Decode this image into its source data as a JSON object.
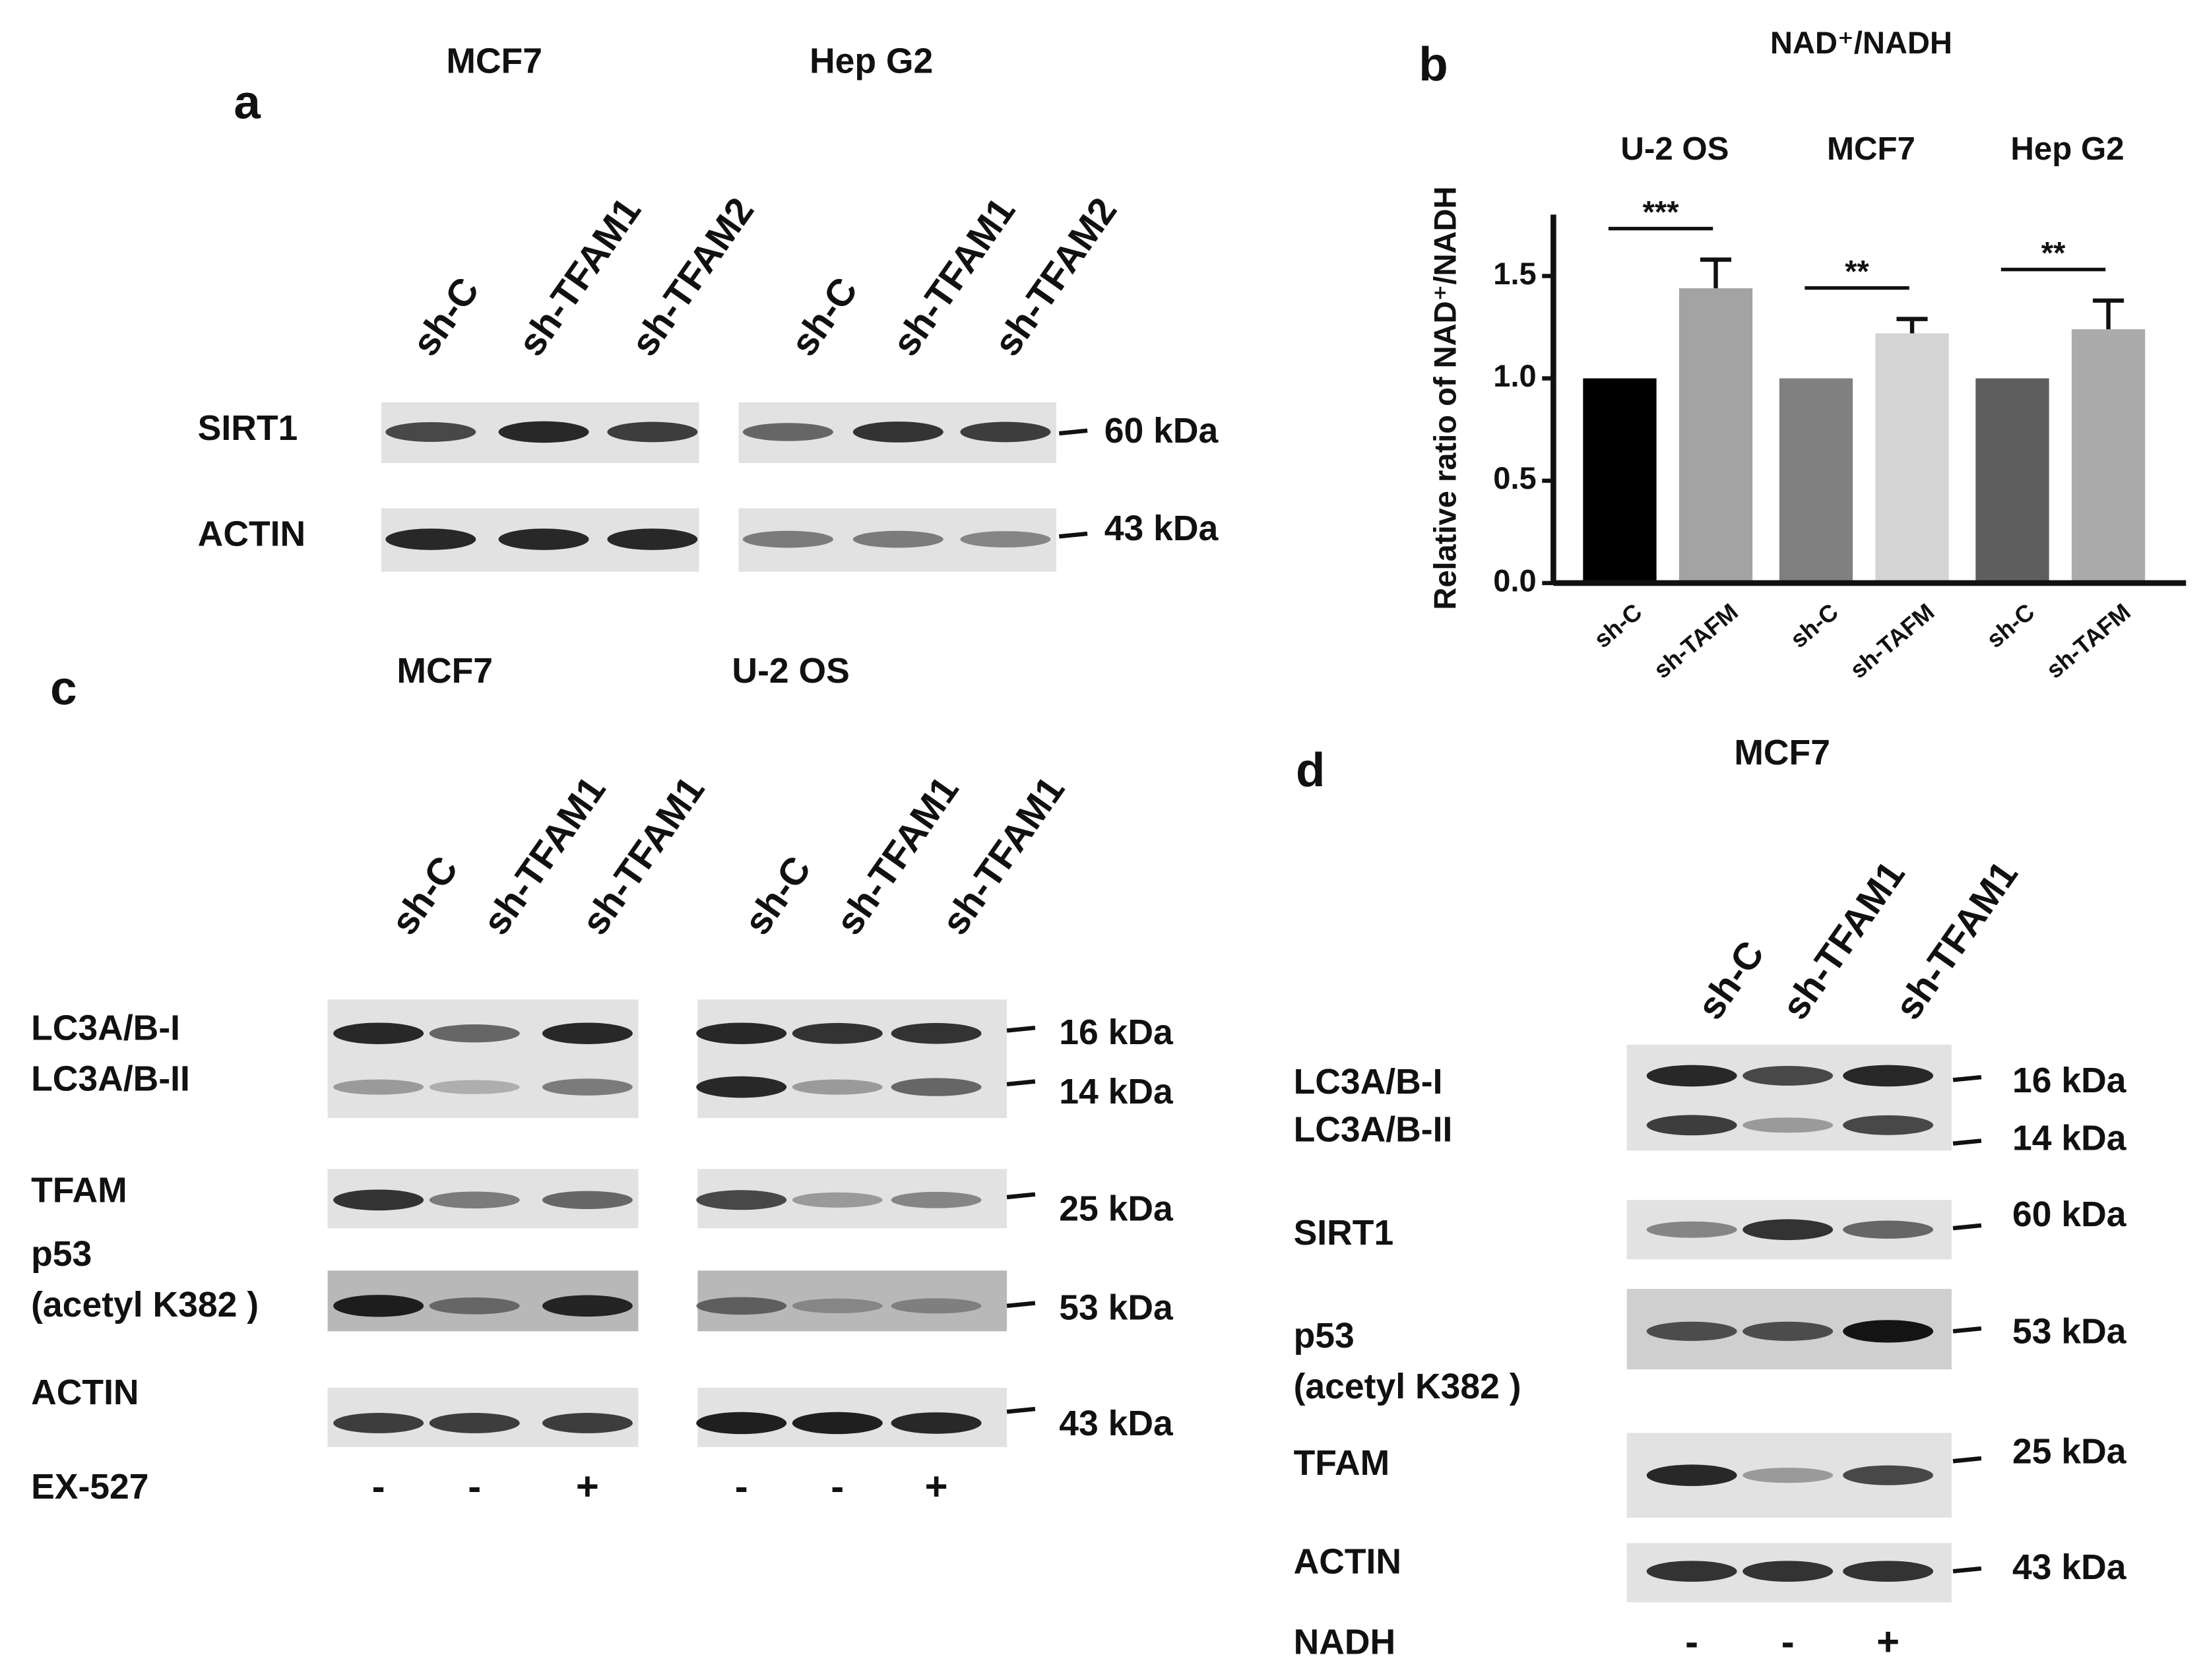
{
  "chart_data": {
    "type": "bar",
    "panel_label": "b",
    "title": "NAD⁺/NADH",
    "y_label": "Relative ratio of NAD⁺/NADH",
    "groups": [
      "U-2 OS",
      "MCF7",
      "Hep G2"
    ],
    "categories": [
      "sh-C",
      "sh-TAFM",
      "sh-C",
      "sh-TAFM",
      "sh-C",
      "sh-TAFM"
    ],
    "values": [
      1.0,
      1.44,
      1.0,
      1.22,
      1.0,
      1.24
    ],
    "errors": [
      null,
      0.14,
      null,
      0.07,
      null,
      0.14
    ],
    "colors": [
      "#000000",
      "#a3a3a3",
      "#808080",
      "#d4d4d4",
      "#5e5e5e",
      "#ababab"
    ],
    "significance": [
      "***",
      "**",
      "**"
    ],
    "ylim": [
      0,
      1.8
    ],
    "yticks": [
      {
        "value": 0,
        "label": "0.0"
      },
      0.5,
      {
        "value": 1,
        "label": "1.0"
      },
      1.5
    ]
  },
  "blots": {
    "a": {
      "label": "a",
      "groups": [
        {
          "name": "MCF7",
          "lanes": [
            "sh-C",
            "sh-TFAM1",
            "sh-TFAM2"
          ]
        },
        {
          "name": "Hep G2",
          "lanes": [
            "sh-C",
            "sh-TFAM1",
            "sh-TFAM2"
          ]
        }
      ],
      "rows": [
        [
          "SIRT1"
        ],
        [
          "ACTIN"
        ]
      ],
      "markers": [
        "60 kDa",
        "43 kDa"
      ]
    },
    "c": {
      "label": "c",
      "groups": [
        {
          "name": "MCF7",
          "lanes": [
            "sh-C",
            "sh-TFAM1",
            "sh-TFAM1"
          ],
          "signs": [
            "-",
            "-",
            "+"
          ]
        },
        {
          "name": "U-2 OS",
          "lanes": [
            "sh-C",
            "sh-TFAM1",
            "sh-TFAM1"
          ],
          "signs": [
            "-",
            "-",
            "+"
          ]
        }
      ],
      "rows": [
        [
          "LC3A/B-I"
        ],
        [
          "LC3A/B-II"
        ],
        [
          "TFAM"
        ],
        [
          "p53",
          "(acetyl K382 )"
        ],
        [
          "ACTIN"
        ]
      ],
      "markers": [
        "16 kDa",
        "14 kDa",
        "25 kDa",
        "53 kDa",
        "43 kDa"
      ],
      "treatment": "EX-527"
    },
    "d": {
      "label": "d",
      "groups": [
        {
          "name": "MCF7",
          "lanes": [
            "sh-C",
            "sh-TFAM1",
            "sh-TFAM1"
          ],
          "signs": [
            "-",
            "-",
            "+"
          ]
        }
      ],
      "rows": [
        [
          "LC3A/B-I"
        ],
        [
          "LC3A/B-II"
        ],
        [
          "SIRT1"
        ],
        [
          "p53",
          "(acetyl K382 )"
        ],
        [
          "TFAM"
        ],
        [
          "ACTIN"
        ]
      ],
      "markers": [
        "16 kDa",
        "14 kDa",
        "60 kDa",
        "53 kDa",
        "25 kDa",
        "43 kDa"
      ],
      "treatment": "NADH"
    }
  }
}
